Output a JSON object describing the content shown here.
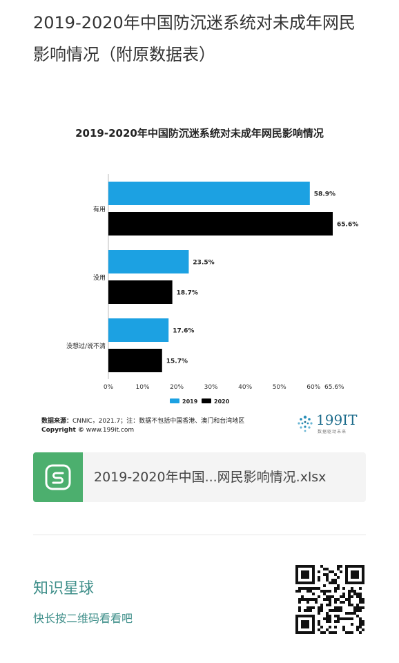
{
  "article": {
    "title": "2019-2020年中国防沉迷系统对未成年网民影响情况（附原数据表）"
  },
  "chart_data": {
    "type": "bar",
    "orientation": "horizontal",
    "title": "2019-2020年中国防沉迷系统对未成年网民影响情况",
    "categories": [
      "有用",
      "没用",
      "没想过/说不清"
    ],
    "series": [
      {
        "name": "2019",
        "values": [
          58.9,
          23.5,
          17.6
        ],
        "color": "#1ca1e2"
      },
      {
        "name": "2020",
        "values": [
          65.6,
          18.7,
          15.7
        ],
        "color": "#000000"
      }
    ],
    "value_labels": [
      [
        "58.9%",
        "23.5%",
        "17.6%"
      ],
      [
        "65.6%",
        "18.7%",
        "15.7%"
      ]
    ],
    "xlim": [
      0,
      65.6
    ],
    "xticks": [
      0,
      10,
      20,
      30,
      40,
      50,
      60,
      65.6
    ],
    "xtick_labels": [
      "0%",
      "10%",
      "20%",
      "30%",
      "40%",
      "50%",
      "60%",
      "65.6%"
    ],
    "legend_position": "bottom",
    "grid": false
  },
  "source": {
    "label": "数据来源：",
    "text": "CNNIC，2021.7；注：数据不包括中国香港、澳门和台湾地区",
    "copyright_label": "Copyright ©",
    "copyright_text": " www.199it.com"
  },
  "logo": {
    "text": "199IT",
    "sub": "数据驱动未来"
  },
  "file": {
    "name": "2019-2020年中国...网民影响情况.xlsx",
    "icon": "spreadsheet-s-icon"
  },
  "planet": {
    "title": "知识星球",
    "subtitle": "快长按二维码看看吧",
    "qr_icon": "qr-code-icon"
  }
}
